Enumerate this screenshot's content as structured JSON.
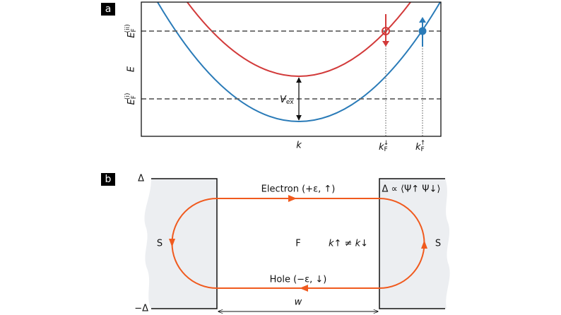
{
  "panel_a": {
    "label": "a",
    "y_axis": {
      "fermi_high": {
        "symbol": "E",
        "sub": "F",
        "sup": "(ii)"
      },
      "energy": "E",
      "fermi_low": {
        "symbol": "E",
        "sub": "F",
        "sup": "(i)"
      }
    },
    "x_axis": {
      "k": "k",
      "kf_down": {
        "symbol": "k",
        "sub": "F",
        "sup": "↓"
      },
      "kf_up": {
        "symbol": "k",
        "sub": "F",
        "sup": "↑"
      }
    },
    "gap": {
      "symbol": "V",
      "sub": "ex"
    }
  },
  "panel_b": {
    "label": "b",
    "delta_top": "Δ",
    "delta_bottom": "−Δ",
    "electron": "Electron (+ε, ↑)",
    "hole": "Hole (−ε, ↓)",
    "order_parameter": "Δ ∝ ⟨Ψ↑ Ψ↓⟩",
    "left_region": "S",
    "right_region": "S",
    "middle_region": "F",
    "condition": "k↑ ≠ k↓",
    "width": "w"
  }
}
